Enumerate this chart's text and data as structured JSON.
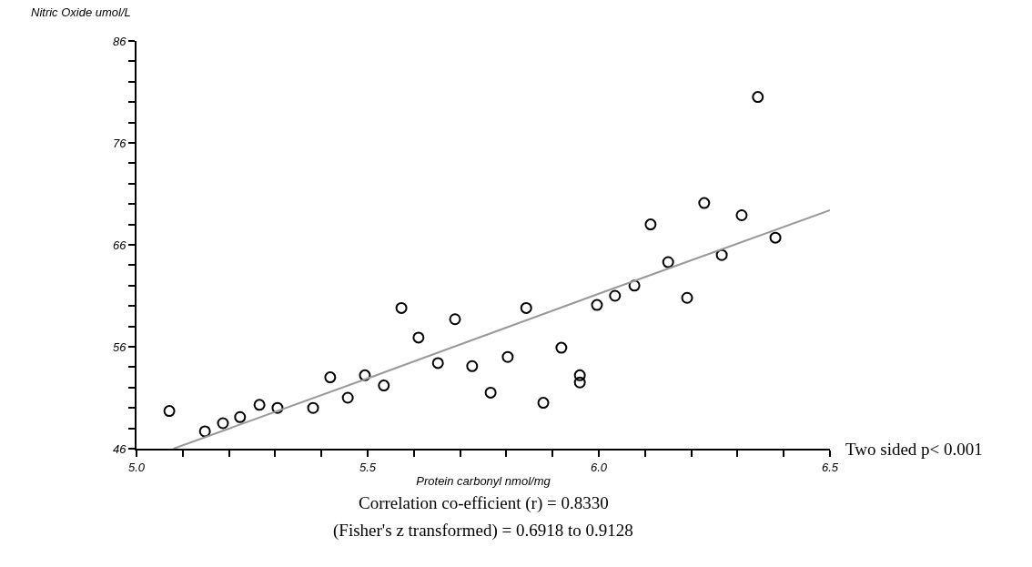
{
  "chart_data": {
    "type": "scatter",
    "xlabel": "Protein carbonyl nmol/mg",
    "ylabel": "Nitric Oxide umol/L",
    "xlim": [
      5.0,
      6.5
    ],
    "ylim": [
      46,
      86
    ],
    "xticks": [
      {
        "value": 5.0,
        "label": "5.0"
      },
      {
        "value": 5.1,
        "label": null
      },
      {
        "value": 5.2,
        "label": null
      },
      {
        "value": 5.3,
        "label": null
      },
      {
        "value": 5.4,
        "label": null
      },
      5.5,
      {
        "value": 5.6,
        "label": null
      },
      {
        "value": 5.7,
        "label": null
      },
      {
        "value": 5.8,
        "label": null
      },
      {
        "value": 5.9,
        "label": null
      },
      {
        "value": 6.0,
        "label": "6.0"
      },
      {
        "value": 6.1,
        "label": null
      },
      {
        "value": 6.2,
        "label": null
      },
      {
        "value": 6.3,
        "label": null
      },
      {
        "value": 6.4,
        "label": null
      },
      6.5
    ],
    "yticks": [
      46,
      {
        "value": 48,
        "label": null
      },
      {
        "value": 50,
        "label": null
      },
      {
        "value": 52,
        "label": null
      },
      {
        "value": 54,
        "label": null
      },
      56,
      {
        "value": 58,
        "label": null
      },
      {
        "value": 60,
        "label": null
      },
      {
        "value": 62,
        "label": null
      },
      {
        "value": 64,
        "label": null
      },
      66,
      {
        "value": 68,
        "label": null
      },
      {
        "value": 70,
        "label": null
      },
      {
        "value": 72,
        "label": null
      },
      {
        "value": 74,
        "label": null
      },
      76,
      {
        "value": 78,
        "label": null
      },
      {
        "value": 80,
        "label": null
      },
      {
        "value": 82,
        "label": null
      },
      {
        "value": 84,
        "label": null
      },
      86
    ],
    "grid": false,
    "marker": "circle",
    "series": [
      {
        "color": "#000000",
        "x": [
          5.071,
          5.148,
          5.187,
          5.224,
          5.266,
          5.305,
          5.382,
          5.419,
          5.457,
          5.494,
          5.535,
          5.573,
          5.61,
          5.652,
          5.689,
          5.726,
          5.766,
          5.803,
          5.843,
          5.88,
          5.919,
          5.959,
          5.959,
          5.996,
          6.035,
          6.077,
          6.112,
          6.15,
          6.191,
          6.228,
          6.266,
          6.309,
          6.344,
          6.382
        ],
        "values": [
          49.7,
          47.7,
          48.5,
          49.1,
          50.3,
          50.0,
          50.0,
          53.0,
          51.0,
          53.2,
          52.2,
          59.8,
          56.9,
          54.4,
          58.7,
          54.1,
          51.5,
          55.0,
          59.8,
          50.5,
          55.9,
          53.2,
          52.5,
          60.1,
          61.0,
          62.0,
          68.0,
          64.3,
          60.8,
          70.1,
          65.0,
          68.9,
          80.5,
          66.7
        ]
      },
      {
        "type": "line",
        "color": "#999999",
        "marker": "none",
        "x": [
          5.08,
          5.5,
          6.0,
          6.5
        ],
        "values": [
          46,
          52.9,
          61.2,
          69.4
        ]
      }
    ],
    "annotations": [
      "Correlation co-efficient (r) = 0.8330",
      "(Fisher's z transformed) = 0.6918 to 0.9128",
      "Two sided p< 0.001"
    ]
  }
}
